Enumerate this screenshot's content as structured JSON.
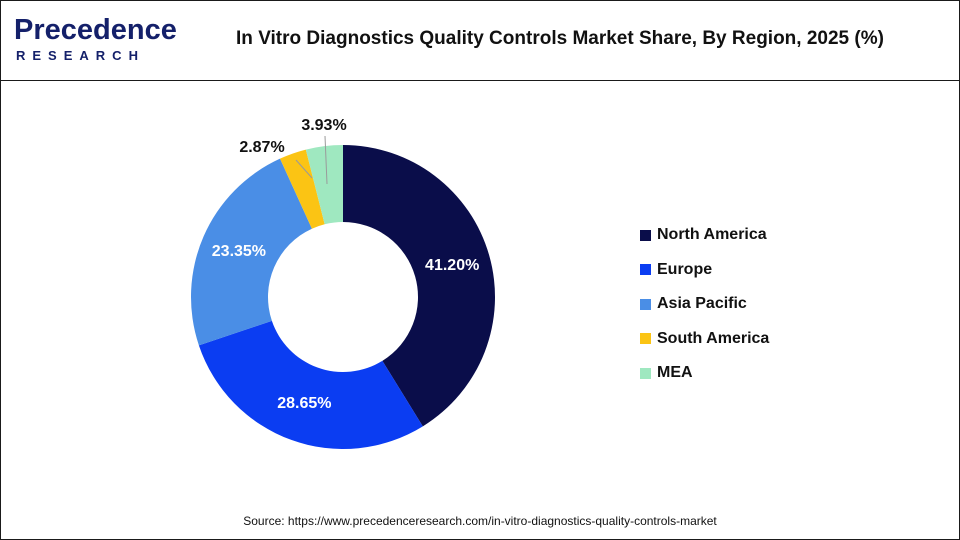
{
  "header": {
    "logo_word": "Precedence",
    "logo_sub": "RESEARCH",
    "title": "In Vitro Diagnostics Quality Controls Market Share, By Region, 2025 (%)"
  },
  "colors": {
    "north_america": "#0a0d4a",
    "europe": "#0b3df2",
    "asia_pacific": "#4a8ee6",
    "south_america": "#fbc414",
    "mea": "#9fe8c0",
    "brand": "#14206a"
  },
  "chart_data": {
    "type": "pie",
    "donut": true,
    "title": "In Vitro Diagnostics Quality Controls Market Share, By Region, 2025 (%)",
    "categories": [
      "North America",
      "Europe",
      "Asia Pacific",
      "South America",
      "MEA"
    ],
    "values": [
      41.2,
      28.65,
      23.35,
      2.87,
      3.93
    ],
    "labels": [
      "41.20%",
      "28.65%",
      "23.35%",
      "2.87%",
      "3.93%"
    ],
    "colors": [
      "#0a0d4a",
      "#0b3df2",
      "#4a8ee6",
      "#fbc414",
      "#9fe8c0"
    ],
    "legend_position": "right"
  },
  "legend": {
    "items": [
      {
        "label": "North America",
        "color": "#0a0d4a"
      },
      {
        "label": "Europe",
        "color": "#0b3df2"
      },
      {
        "label": "Asia Pacific",
        "color": "#4a8ee6"
      },
      {
        "label": "South America",
        "color": "#fbc414"
      },
      {
        "label": "MEA",
        "color": "#9fe8c0"
      }
    ]
  },
  "footer": {
    "source": "Source: https://www.precedenceresearch.com/in-vitro-diagnostics-quality-controls-market"
  }
}
